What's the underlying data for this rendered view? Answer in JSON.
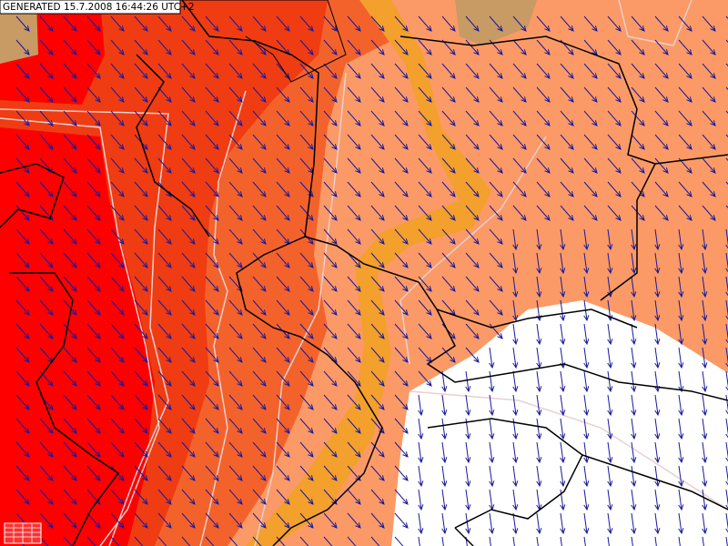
{
  "header": {
    "generated": "GENERATED 15.7.2008 16:44:26 UTC+2"
  }
}
